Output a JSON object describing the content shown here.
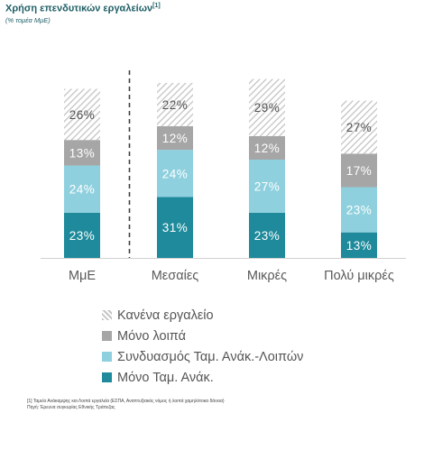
{
  "title": "Χρήση επενδυτικών εργαλείων",
  "title_ref": "[1]",
  "subtitle": "(% τομέα ΜμΕ)",
  "colors": {
    "mono_tam": "#1e8a9b",
    "syndyasmos": "#8fd0de",
    "mono_loipa": "#a6a6a6",
    "kanena": "hatched-gray"
  },
  "chart_data": {
    "type": "bar",
    "stacked": true,
    "categories": [
      "ΜμΕ",
      "Μεσαίες",
      "Μικρές",
      "Πολύ μικρές"
    ],
    "series": [
      {
        "name": "Μόνο Ταμ. Ανάκ.",
        "values": [
          23,
          31,
          23,
          13
        ]
      },
      {
        "name": "Συνδυασμός Ταμ. Ανάκ.-Λοιπών",
        "values": [
          24,
          24,
          27,
          23
        ]
      },
      {
        "name": "Μόνο λοιπά",
        "values": [
          13,
          12,
          12,
          17
        ]
      },
      {
        "name": "Κανένα εργαλείο",
        "values": [
          26,
          22,
          29,
          27
        ]
      }
    ],
    "value_suffix": "%",
    "separator_after_category": "ΜμΕ",
    "legend_position": "bottom-left",
    "grid": false
  },
  "legend": [
    {
      "label": "Κανένα εργαλείο",
      "key": "kanena"
    },
    {
      "label": "Μόνο λοιπά",
      "key": "mono_loipa"
    },
    {
      "label": "Συνδυασμός Ταμ. Ανάκ.-Λοιπών",
      "key": "syndyasmos"
    },
    {
      "label": "Μόνο Ταμ. Ανάκ.",
      "key": "mono_tam"
    }
  ],
  "footnotes": [
    "[1] Ταμείο Ανάκαμψης και Λοιπά εργαλεία (ΕΣΠΑ, Αναπτυξιακός νόμος ή λοιπά χαμηλότοκα δάνεια)",
    "Πηγή: Έρευνα συγκυρίας Εθνικής Τράπεζας"
  ]
}
